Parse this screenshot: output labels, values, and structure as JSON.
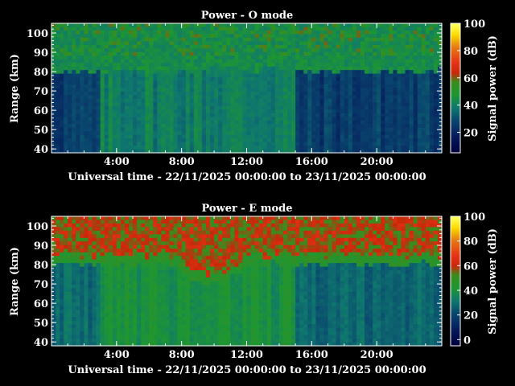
{
  "chart_data": [
    {
      "type": "heatmap",
      "title": "Power - O mode",
      "xlabel": "Universal time - 22/11/2025 00:00:00 to 23/11/2025 00:00:00",
      "ylabel": "Range (km)",
      "x_ticks": [
        "4:00",
        "8:00",
        "12:00",
        "16:00",
        "20:00"
      ],
      "x_tick_hours": [
        4,
        8,
        12,
        16,
        20
      ],
      "xlim_hours": [
        0,
        24
      ],
      "y_ticks": [
        40,
        50,
        60,
        70,
        80,
        90,
        100
      ],
      "ylim": [
        38,
        105
      ],
      "colorbar": {
        "label": "Signal power (dB)",
        "ticks": [
          20,
          40,
          60,
          80,
          100
        ],
        "range": [
          5,
          100
        ]
      },
      "description_values": {
        "mesosphere_echo_lower_edge_km": 80,
        "typical_power_above_80km_db": 45,
        "typical_power_below_80km_db": 30,
        "max_power_db": 100
      }
    },
    {
      "type": "heatmap",
      "title": "Power - E mode",
      "xlabel": "Universal time - 22/11/2025 00:00:00 to 23/11/2025 00:00:00",
      "ylabel": "Range (km)",
      "x_ticks": [
        "4:00",
        "8:00",
        "12:00",
        "16:00",
        "20:00"
      ],
      "x_tick_hours": [
        4,
        8,
        12,
        16,
        20
      ],
      "xlim_hours": [
        0,
        24
      ],
      "y_ticks": [
        40,
        50,
        60,
        70,
        80,
        90,
        100
      ],
      "ylim": [
        38,
        105
      ],
      "colorbar": {
        "label": "Signal power (dB)",
        "ticks": [
          0,
          20,
          40,
          60,
          80,
          100
        ],
        "range": [
          -5,
          100
        ]
      },
      "description_values": {
        "mesosphere_echo_lower_edge_km": 80,
        "typical_power_above_85km_db": 60,
        "typical_power_below_80km_db": 30,
        "max_power_db": 100
      }
    }
  ]
}
